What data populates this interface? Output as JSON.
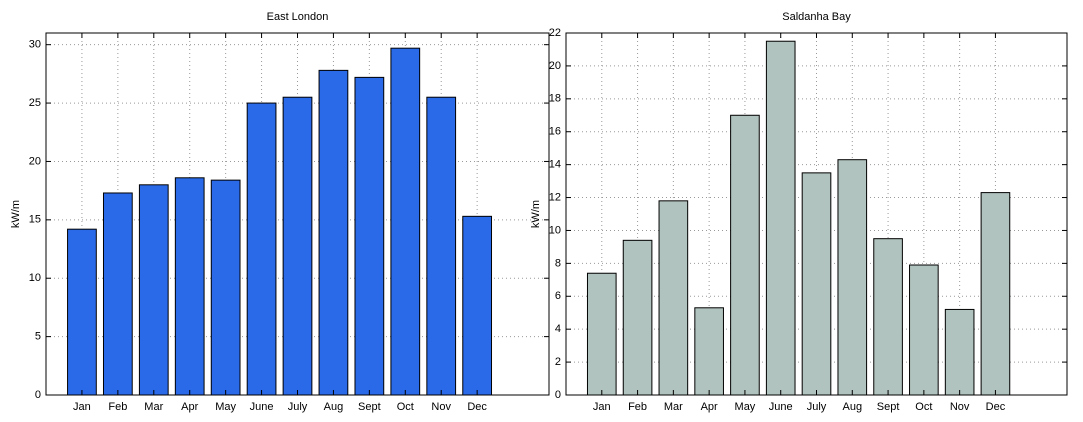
{
  "chart_data": [
    {
      "type": "bar",
      "title": "East London",
      "y_label": "kW/m",
      "categories": [
        "Jan",
        "Feb",
        "Mar",
        "Apr",
        "May",
        "June",
        "July",
        "Aug",
        "Sept",
        "Oct",
        "Nov",
        "Dec"
      ],
      "values": [
        14.2,
        17.3,
        18.0,
        18.6,
        18.4,
        25.0,
        25.5,
        27.8,
        27.2,
        29.7,
        25.5,
        15.3
      ],
      "color": "#2a69e8",
      "ylim": [
        0,
        31
      ],
      "yticks": [
        0,
        5,
        10,
        15,
        20,
        25,
        30
      ],
      "grid": true
    },
    {
      "type": "bar",
      "title": "Saldanha Bay",
      "y_label": "kW/m",
      "categories": [
        "Jan",
        "Feb",
        "Mar",
        "Apr",
        "May",
        "June",
        "July",
        "Aug",
        "Sept",
        "Oct",
        "Nov",
        "Dec"
      ],
      "values": [
        7.4,
        9.4,
        11.8,
        5.3,
        17.0,
        21.5,
        13.5,
        14.3,
        9.5,
        7.9,
        5.2,
        12.3
      ],
      "color": "#b1c3be",
      "ylim": [
        0,
        22
      ],
      "yticks": [
        0,
        2,
        4,
        6,
        8,
        10,
        12,
        14,
        16,
        18,
        20,
        22
      ],
      "grid": true
    }
  ]
}
